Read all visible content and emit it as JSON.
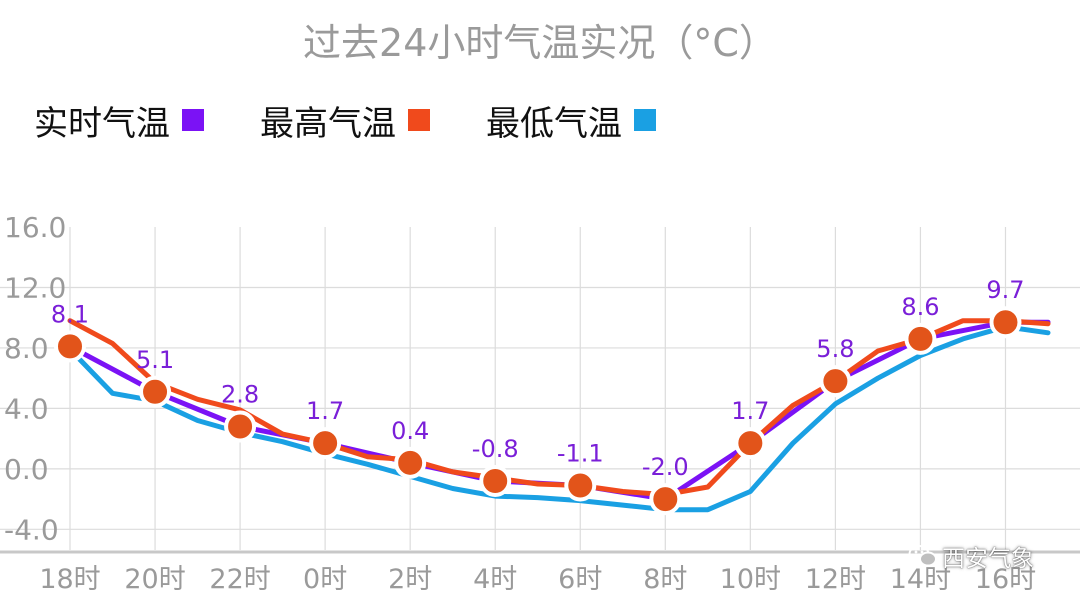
{
  "chart_data": {
    "type": "line",
    "title": "过去24小时气温实况（°C）",
    "legend": [
      {
        "label": "实时气温",
        "color": "#7b12f5"
      },
      {
        "label": "最高气温",
        "color": "#f04a1c"
      },
      {
        "label": "最低气温",
        "color": "#1aa0e3"
      }
    ],
    "legend_position": "top-left",
    "y_ticks": [
      "16.0",
      "12.0",
      "8.0",
      "4.0",
      "0.0",
      "-4.0"
    ],
    "y_tick_values": [
      16,
      12,
      8,
      4,
      0,
      -4
    ],
    "ylim": [
      -5.5,
      16
    ],
    "x_ticks": [
      "18时",
      "20时",
      "22时",
      "0时",
      "2时",
      "4时",
      "6时",
      "8时",
      "10时",
      "12时",
      "14时",
      "16时"
    ],
    "xlim": [
      0,
      23
    ],
    "grid": true,
    "series": [
      {
        "name": "实时气温",
        "color": "#7b12f5",
        "x": [
          0,
          2,
          4,
          6,
          8,
          10,
          12,
          14,
          16,
          18,
          20,
          22,
          23
        ],
        "values": [
          8.1,
          5.1,
          2.8,
          1.7,
          0.4,
          -0.8,
          -1.1,
          -2.0,
          1.7,
          5.8,
          8.6,
          9.7,
          9.7
        ]
      },
      {
        "name": "最高气温",
        "color": "#f04a1c",
        "x": [
          0,
          1,
          2,
          3,
          4,
          5,
          6,
          7,
          8,
          9,
          10,
          11,
          12,
          13,
          14,
          15,
          16,
          17,
          18,
          19,
          20,
          21,
          22,
          23
        ],
        "values": [
          9.8,
          8.3,
          5.7,
          4.6,
          3.9,
          2.3,
          1.7,
          0.8,
          0.6,
          -0.2,
          -0.6,
          -1.0,
          -1.1,
          -1.5,
          -1.7,
          -1.2,
          1.7,
          4.2,
          5.8,
          7.8,
          8.6,
          9.8,
          9.8,
          9.6
        ]
      },
      {
        "name": "最低气温",
        "color": "#1aa0e3",
        "x": [
          0,
          1,
          2,
          3,
          4,
          5,
          6,
          7,
          8,
          9,
          10,
          11,
          12,
          13,
          14,
          15,
          16,
          17,
          18,
          19,
          20,
          21,
          22,
          23
        ],
        "values": [
          7.9,
          5.0,
          4.5,
          3.2,
          2.4,
          1.8,
          1.0,
          0.3,
          -0.5,
          -1.3,
          -1.8,
          -1.9,
          -2.1,
          -2.4,
          -2.7,
          -2.7,
          -1.5,
          1.7,
          4.3,
          6.0,
          7.5,
          8.6,
          9.4,
          9.0
        ]
      }
    ],
    "markers": {
      "series": "实时气温",
      "x": [
        0,
        2,
        4,
        6,
        8,
        10,
        12,
        14,
        16,
        18,
        20,
        22
      ],
      "labels": [
        "8.1",
        "5.1",
        "2.8",
        "1.7",
        "0.4",
        "-0.8",
        "-1.1",
        "-2.0",
        "1.7",
        "5.8",
        "8.6",
        "9.7"
      ],
      "fill": "#e2541a"
    }
  },
  "watermark": {
    "text": "西安气象"
  }
}
